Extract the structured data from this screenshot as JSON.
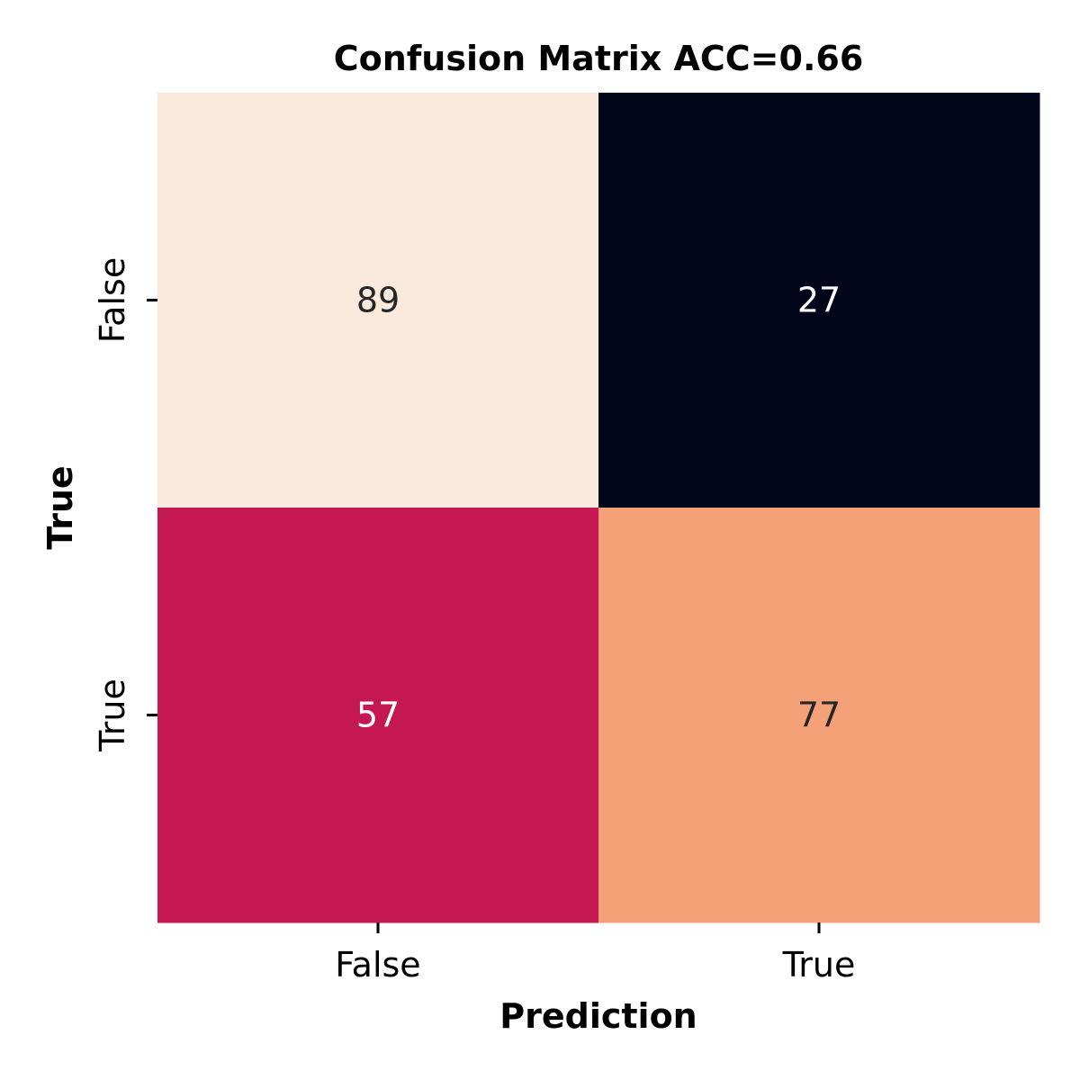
{
  "chart_data": {
    "type": "heatmap",
    "title": "Confusion Matrix ACC=0.66",
    "xlabel": "Prediction",
    "ylabel": "True",
    "x_categories": [
      "False",
      "True"
    ],
    "y_categories": [
      "False",
      "True"
    ],
    "values": [
      [
        89,
        27
      ],
      [
        57,
        77
      ]
    ],
    "colorbar": false,
    "colormap": "rocket",
    "cell_colors": [
      [
        "#faeadc",
        "#03051a"
      ],
      [
        "#c51852",
        "#f4a178"
      ]
    ],
    "cell_text_colors": [
      [
        "#262626",
        "#ffffff"
      ],
      [
        "#ffffff",
        "#262626"
      ]
    ]
  }
}
